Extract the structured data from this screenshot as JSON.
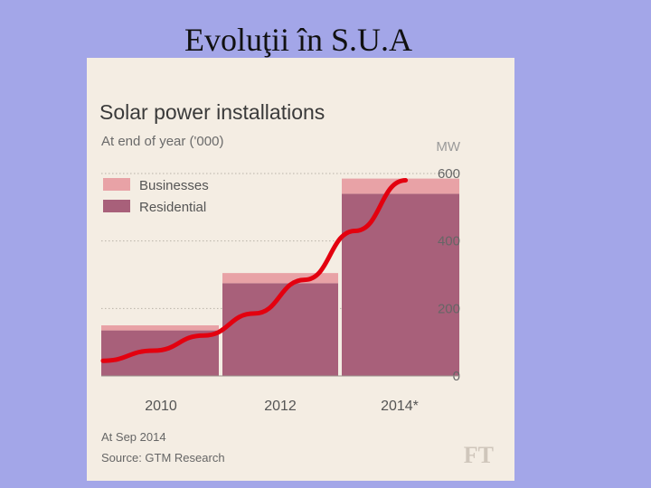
{
  "slide": {
    "title": "Evoluţii în S.U.A"
  },
  "chart_data": {
    "type": "bar",
    "stacked": true,
    "title": "Solar power installations",
    "subtitle": "At end of year ('000)",
    "unit_label": "MW",
    "categories": [
      "2010",
      "2012",
      "2014*"
    ],
    "series": [
      {
        "name": "Residential",
        "color": "#a8607a",
        "values": [
          135,
          275,
          540
        ]
      },
      {
        "name": "Businesses",
        "color": "#e8a2a6",
        "values": [
          15,
          30,
          45
        ]
      }
    ],
    "trend": {
      "name": "growth-curve",
      "color": "#e3000f",
      "values": [
        45,
        75,
        120,
        185,
        285,
        430,
        580
      ]
    },
    "ylim": [
      0,
      600
    ],
    "yticks": [
      0,
      200,
      400,
      600
    ],
    "footnote": "At Sep 2014",
    "source": "Source: GTM Research",
    "logo": "FT",
    "legend_position": "top-left",
    "grid": true
  }
}
